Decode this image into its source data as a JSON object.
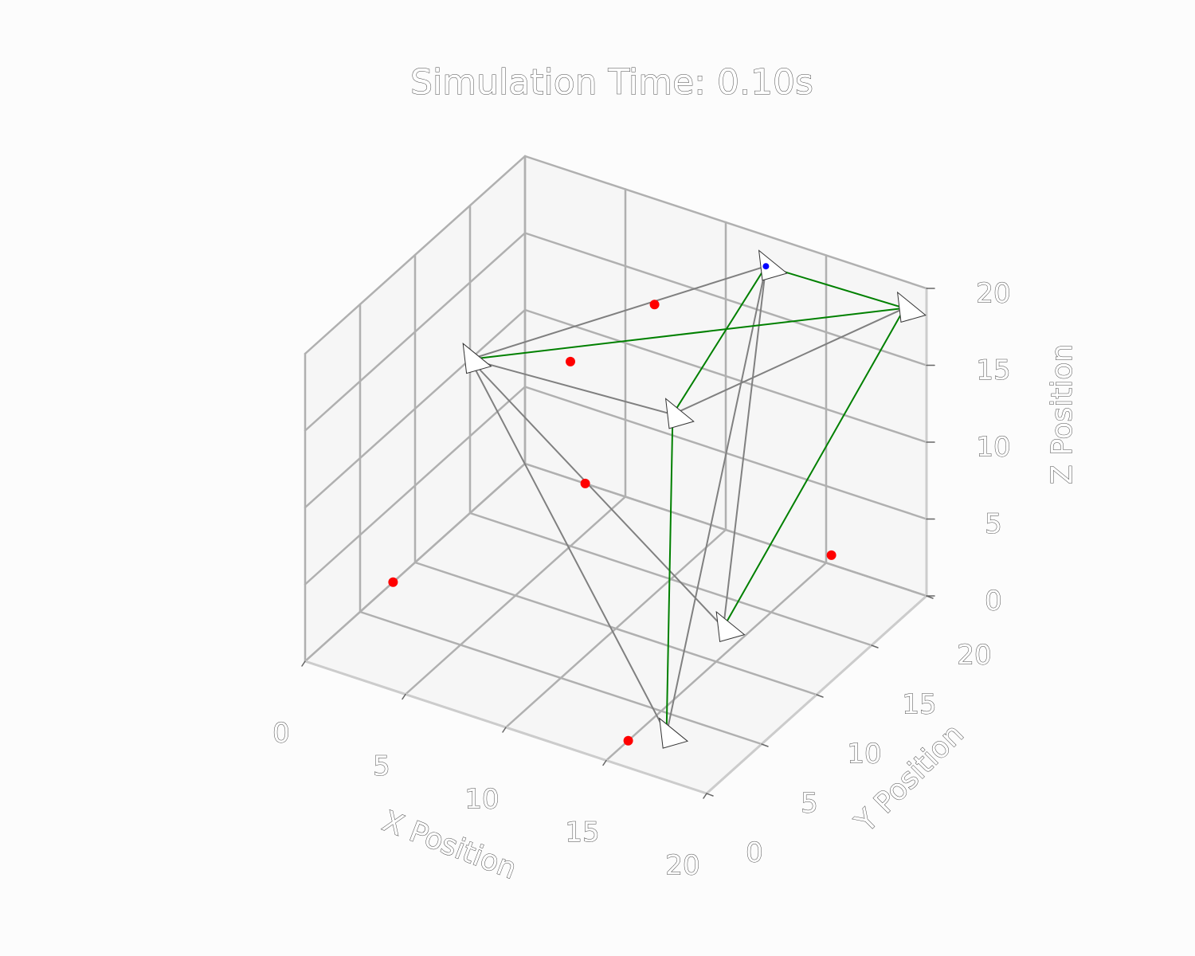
{
  "chart_data": {
    "type": "scatter",
    "projection": "3d",
    "title": "Simulation Time: 0.10s",
    "xlabel": "X Position",
    "ylabel": "Y Position",
    "zlabel": "Z Position",
    "xlim": [
      0,
      20
    ],
    "ylim": [
      0,
      20
    ],
    "zlim": [
      0,
      20
    ],
    "xticks": [
      "0",
      "5",
      "10",
      "15",
      "20"
    ],
    "yticks": [
      "0",
      "5",
      "10",
      "15",
      "20"
    ],
    "zticks": [
      "0",
      "5",
      "10",
      "15",
      "20"
    ],
    "grid": true,
    "colors": {
      "agents": "#ffffff",
      "leader": "#0000ff",
      "targets": "#ff0000",
      "leader_links": "#008000",
      "agent_links": "#808080",
      "grid": "#b0b0b0"
    },
    "agents": [
      {
        "x": 12.0,
        "y": 20.0,
        "z": 18.0,
        "leader": true
      },
      {
        "x": 20.0,
        "y": 18.0,
        "z": 20.0
      },
      {
        "x": 0.0,
        "y": 15.0,
        "z": 10.0
      },
      {
        "x": 9.0,
        "y": 17.0,
        "z": 9.0
      },
      {
        "x": 17.0,
        "y": 7.0,
        "z": 5.0
      },
      {
        "x": 18.0,
        "y": 0.0,
        "z": 3.0
      }
    ],
    "targets": [
      {
        "x": 0.0,
        "y": 8.0,
        "z": 0.0
      },
      {
        "x": 3.0,
        "y": 20.0,
        "z": 0.0
      },
      {
        "x": 15.0,
        "y": 2.0,
        "z": 0.0
      },
      {
        "x": 5.0,
        "y": 15.0,
        "z": 12.0
      },
      {
        "x": 7.0,
        "y": 19.0,
        "z": 14.0
      },
      {
        "x": 18.0,
        "y": 15.0,
        "z": 5.0
      }
    ],
    "leader_links": [
      [
        0,
        1
      ],
      [
        1,
        2
      ],
      [
        0,
        3
      ],
      [
        3,
        5
      ],
      [
        1,
        4
      ]
    ],
    "agent_links": [
      [
        0,
        2
      ],
      [
        0,
        5
      ],
      [
        0,
        4
      ],
      [
        2,
        3
      ],
      [
        2,
        4
      ],
      [
        1,
        3
      ],
      [
        2,
        5
      ]
    ]
  }
}
